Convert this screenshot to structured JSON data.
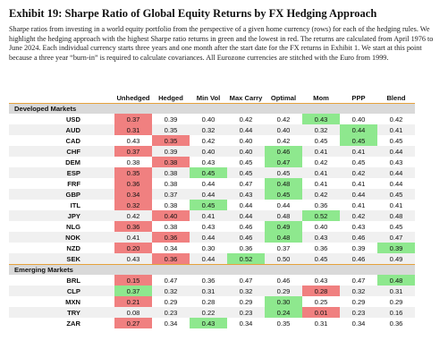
{
  "header": {
    "title": "Exhibit 19: Sharpe Ratio of Global Equity Returns by FX Hedging Approach",
    "description": "Sharpe ratios from investing in a world equity portfolio from the perspective of a given home currency (rows) for each of the hedging rules. We highlight the hedging approach with the highest Sharpe ratio returns in green and the lowest in red. The returns are calculated from April 1976 to June 2024. Each individual currency starts three years and one month after the start date for the FX returns in Exhibit 1. We start at this point because a three year “burn-in” is required to calculate covariances. All Eurozone currencies are stitched with the Euro from 1999."
  },
  "table": {
    "columns": [
      "Unhedged",
      "Hedged",
      "Min Vol",
      "Max Carry",
      "Optimal",
      "Mom",
      "PPP",
      "Blend"
    ],
    "highest_color": "#8ee88e",
    "lowest_color": "#f08080",
    "sections": [
      {
        "name": "Developed Markets",
        "rows": [
          {
            "label": "USD",
            "cells": [
              "0.37",
              "0.39",
              "0.40",
              "0.42",
              "0.42",
              "0.43",
              "0.40",
              "0.42"
            ],
            "highest": 5,
            "lowest": 0
          },
          {
            "label": "AUD",
            "cells": [
              "0.31",
              "0.35",
              "0.32",
              "0.44",
              "0.40",
              "0.32",
              "0.44",
              "0.41"
            ],
            "highest": 6,
            "lowest": 0
          },
          {
            "label": "CAD",
            "cells": [
              "0.43",
              "0.35",
              "0.42",
              "0.40",
              "0.42",
              "0.45",
              "0.45",
              "0.45"
            ],
            "highest": 6,
            "lowest": 1
          },
          {
            "label": "CHF",
            "cells": [
              "0.37",
              "0.39",
              "0.40",
              "0.40",
              "0.46",
              "0.41",
              "0.41",
              "0.44"
            ],
            "highest": 4,
            "lowest": 0
          },
          {
            "label": "DEM",
            "cells": [
              "0.38",
              "0.38",
              "0.43",
              "0.45",
              "0.47",
              "0.42",
              "0.45",
              "0.43"
            ],
            "highest": 4,
            "lowest": 1
          },
          {
            "label": "ESP",
            "cells": [
              "0.35",
              "0.38",
              "0.45",
              "0.45",
              "0.45",
              "0.41",
              "0.42",
              "0.44"
            ],
            "highest": 2,
            "lowest": 0
          },
          {
            "label": "FRF",
            "cells": [
              "0.36",
              "0.38",
              "0.44",
              "0.47",
              "0.48",
              "0.41",
              "0.41",
              "0.44"
            ],
            "highest": 4,
            "lowest": 0
          },
          {
            "label": "GBP",
            "cells": [
              "0.34",
              "0.37",
              "0.44",
              "0.43",
              "0.45",
              "0.42",
              "0.44",
              "0.45"
            ],
            "highest": 4,
            "lowest": 0
          },
          {
            "label": "ITL",
            "cells": [
              "0.32",
              "0.38",
              "0.45",
              "0.44",
              "0.44",
              "0.36",
              "0.41",
              "0.41"
            ],
            "highest": 2,
            "lowest": 0
          },
          {
            "label": "JPY",
            "cells": [
              "0.42",
              "0.40",
              "0.41",
              "0.44",
              "0.48",
              "0.52",
              "0.42",
              "0.48"
            ],
            "highest": 5,
            "lowest": 1
          },
          {
            "label": "NLG",
            "cells": [
              "0.36",
              "0.38",
              "0.43",
              "0.46",
              "0.49",
              "0.40",
              "0.43",
              "0.45"
            ],
            "highest": 4,
            "lowest": 0
          },
          {
            "label": "NOK",
            "cells": [
              "0.41",
              "0.36",
              "0.44",
              "0.46",
              "0.48",
              "0.43",
              "0.46",
              "0.47"
            ],
            "highest": 4,
            "lowest": 1
          },
          {
            "label": "NZD",
            "cells": [
              "0.20",
              "0.34",
              "0.30",
              "0.36",
              "0.37",
              "0.36",
              "0.39",
              "0.39"
            ],
            "highest": 7,
            "lowest": 0
          },
          {
            "label": "SEK",
            "cells": [
              "0.43",
              "0.36",
              "0.44",
              "0.52",
              "0.50",
              "0.45",
              "0.46",
              "0.49"
            ],
            "highest": 3,
            "lowest": 1
          }
        ]
      },
      {
        "name": "Emerging Markets",
        "rows": [
          {
            "label": "BRL",
            "cells": [
              "0.15",
              "0.47",
              "0.36",
              "0.47",
              "0.46",
              "0.43",
              "0.47",
              "0.48"
            ],
            "highest": 7,
            "lowest": 0
          },
          {
            "label": "CLP",
            "cells": [
              "0.37",
              "0.32",
              "0.31",
              "0.32",
              "0.29",
              "0.28",
              "0.32",
              "0.31"
            ],
            "highest": 0,
            "lowest": 5
          },
          {
            "label": "MXN",
            "cells": [
              "0.21",
              "0.29",
              "0.28",
              "0.29",
              "0.30",
              "0.25",
              "0.29",
              "0.29"
            ],
            "highest": 4,
            "lowest": 0
          },
          {
            "label": "TRY",
            "cells": [
              "0.08",
              "0.23",
              "0.22",
              "0.23",
              "0.24",
              "0.01",
              "0.23",
              "0.16"
            ],
            "highest": 4,
            "lowest": 5
          },
          {
            "label": "ZAR",
            "cells": [
              "0.27",
              "0.34",
              "0.43",
              "0.34",
              "0.35",
              "0.31",
              "0.34",
              "0.36"
            ],
            "highest": 2,
            "lowest": 0
          }
        ]
      }
    ]
  }
}
